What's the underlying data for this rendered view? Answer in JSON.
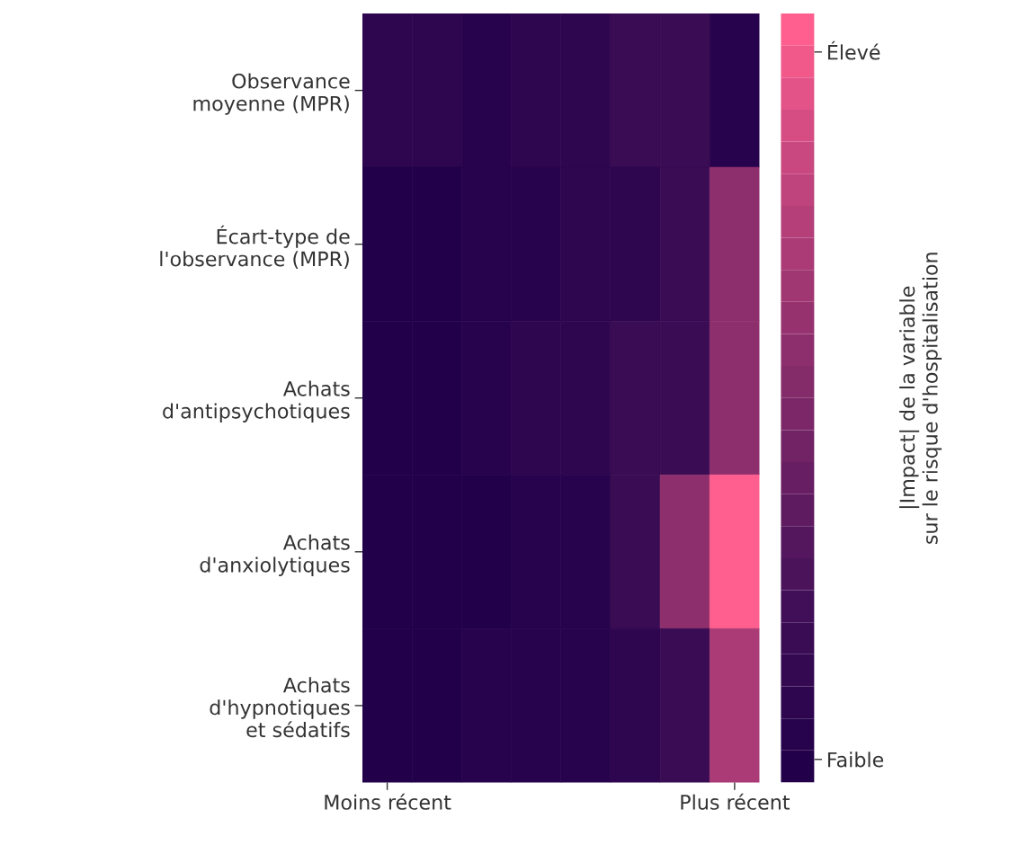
{
  "chart_data": {
    "type": "heatmap",
    "categories": [
      "Moins récent",
      null,
      null,
      null,
      null,
      null,
      null,
      "Plus récent"
    ],
    "y_categories": [
      "Observance\nmoyenne (MPR)",
      "Écart-type de\nl'observance (MPR)",
      "Achats\nd'antipsychotiques",
      "Achats\nd'anxiolytiques",
      "Achats\nd'hypnotiques\net sédatifs"
    ],
    "cells": [
      [
        0.1,
        0.1,
        0.05,
        0.1,
        0.1,
        0.17,
        0.17,
        0.05
      ],
      [
        0.0,
        0.0,
        0.05,
        0.05,
        0.1,
        0.1,
        0.17,
        0.55
      ],
      [
        0.0,
        0.0,
        0.05,
        0.1,
        0.1,
        0.17,
        0.17,
        0.55
      ],
      [
        0.0,
        0.0,
        0.0,
        0.05,
        0.05,
        0.17,
        0.55,
        1.0
      ],
      [
        0.0,
        0.0,
        0.05,
        0.05,
        0.05,
        0.1,
        0.17,
        0.7
      ]
    ],
    "clim": [
      0,
      1
    ],
    "cticks": [
      {
        "value": 0.03,
        "label": "Faible"
      },
      {
        "value": 0.95,
        "label": "Élevé"
      }
    ],
    "clabel": "|Impact| de la variable\nsur le risque d'hospitalisation"
  }
}
